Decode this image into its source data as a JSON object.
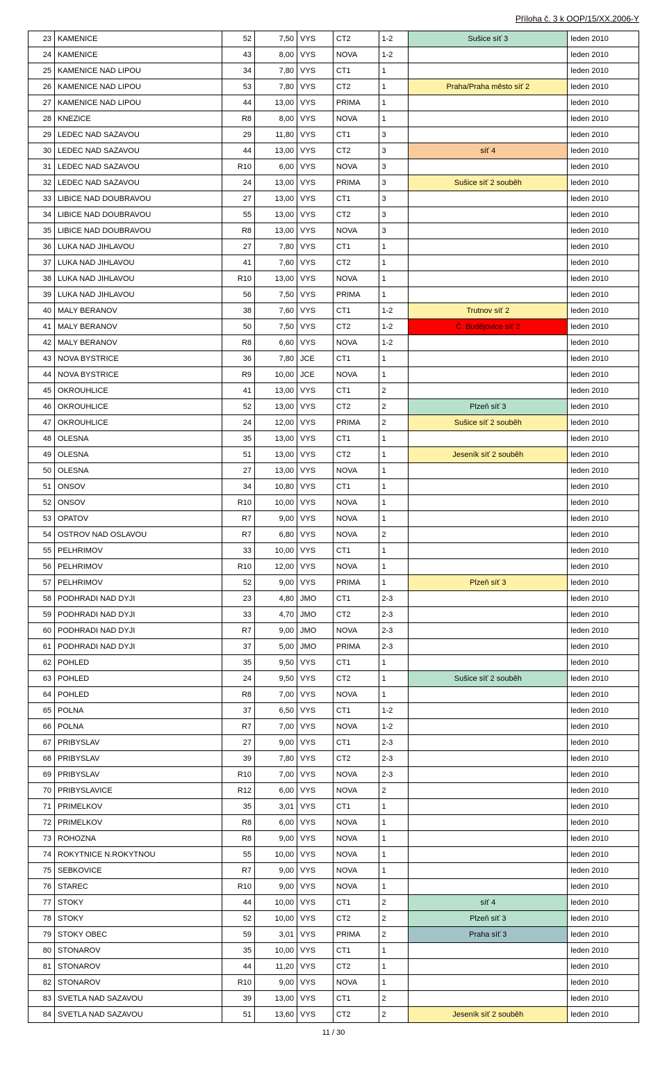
{
  "header": "Příloha č. 3 k OOP/15/XX.2006-Y",
  "footer": "11 / 30",
  "note_colors": {
    "green": "#b7e1cd",
    "yellow": "#fff2a8",
    "orange": "#f9cb9c",
    "red": "#ff0000",
    "olive": "#a2c4c9"
  },
  "column_widths": [
    "24px",
    "200px",
    "32px",
    "44px",
    "36px",
    "48px",
    "28px",
    "190px",
    "80px"
  ],
  "rows": [
    {
      "n": "23",
      "name": "KAMENICE",
      "ch": "52",
      "val": "7,50",
      "reg": "VYS",
      "ct": "CT2",
      "rng": "1-2",
      "note": "Sušice síť 3",
      "note_bg": "#b7e1cd",
      "date": "leden 2010"
    },
    {
      "n": "24",
      "name": "KAMENICE",
      "ch": "43",
      "val": "8,00",
      "reg": "VYS",
      "ct": "NOVA",
      "rng": "1-2",
      "note": "",
      "note_bg": "",
      "date": "leden 2010"
    },
    {
      "n": "25",
      "name": "KAMENICE NAD LIPOU",
      "ch": "34",
      "val": "7,80",
      "reg": "VYS",
      "ct": "CT1",
      "rng": "1",
      "note": "",
      "note_bg": "",
      "date": "leden 2010"
    },
    {
      "n": "26",
      "name": "KAMENICE NAD LIPOU",
      "ch": "53",
      "val": "7,80",
      "reg": "VYS",
      "ct": "CT2",
      "rng": "1",
      "note": "Praha/Praha město síť 2",
      "note_bg": "#fff2a8",
      "date": "leden 2010"
    },
    {
      "n": "27",
      "name": "KAMENICE NAD LIPOU",
      "ch": "44",
      "val": "13,00",
      "reg": "VYS",
      "ct": "PRIMA",
      "rng": "1",
      "note": "",
      "note_bg": "",
      "date": "leden 2010"
    },
    {
      "n": "28",
      "name": "KNEZICE",
      "ch": "R8",
      "val": "8,00",
      "reg": "VYS",
      "ct": "NOVA",
      "rng": "1",
      "note": "",
      "note_bg": "",
      "date": "leden 2010"
    },
    {
      "n": "29",
      "name": "LEDEC NAD SAZAVOU",
      "ch": "29",
      "val": "11,80",
      "reg": "VYS",
      "ct": "CT1",
      "rng": "3",
      "note": "",
      "note_bg": "",
      "date": "leden 2010"
    },
    {
      "n": "30",
      "name": "LEDEC NAD SAZAVOU",
      "ch": "44",
      "val": "13,00",
      "reg": "VYS",
      "ct": "CT2",
      "rng": "3",
      "note": "síť 4",
      "note_bg": "#f9cb9c",
      "date": "leden 2010"
    },
    {
      "n": "31",
      "name": "LEDEC NAD SAZAVOU",
      "ch": "R10",
      "val": "6,00",
      "reg": "VYS",
      "ct": "NOVA",
      "rng": "3",
      "note": "",
      "note_bg": "",
      "date": "leden 2010"
    },
    {
      "n": "32",
      "name": "LEDEC NAD SAZAVOU",
      "ch": "24",
      "val": "13,00",
      "reg": "VYS",
      "ct": "PRIMA",
      "rng": "3",
      "note": "Sušice síť 2 souběh",
      "note_bg": "#fff2a8",
      "date": "leden 2010"
    },
    {
      "n": "33",
      "name": "LIBICE NAD DOUBRAVOU",
      "ch": "27",
      "val": "13,00",
      "reg": "VYS",
      "ct": "CT1",
      "rng": "3",
      "note": "",
      "note_bg": "",
      "date": "leden 2010"
    },
    {
      "n": "34",
      "name": "LIBICE NAD DOUBRAVOU",
      "ch": "55",
      "val": "13,00",
      "reg": "VYS",
      "ct": "CT2",
      "rng": "3",
      "note": "",
      "note_bg": "",
      "date": "leden 2010"
    },
    {
      "n": "35",
      "name": "LIBICE NAD DOUBRAVOU",
      "ch": "R8",
      "val": "13,00",
      "reg": "VYS",
      "ct": "NOVA",
      "rng": "3",
      "note": "",
      "note_bg": "",
      "date": "leden 2010"
    },
    {
      "n": "36",
      "name": "LUKA NAD JIHLAVOU",
      "ch": "27",
      "val": "7,80",
      "reg": "VYS",
      "ct": "CT1",
      "rng": "1",
      "note": "",
      "note_bg": "",
      "date": "leden 2010"
    },
    {
      "n": "37",
      "name": "LUKA NAD JIHLAVOU",
      "ch": "41",
      "val": "7,60",
      "reg": "VYS",
      "ct": "CT2",
      "rng": "1",
      "note": "",
      "note_bg": "",
      "date": "leden 2010"
    },
    {
      "n": "38",
      "name": "LUKA NAD JIHLAVOU",
      "ch": "R10",
      "val": "13,00",
      "reg": "VYS",
      "ct": "NOVA",
      "rng": "1",
      "note": "",
      "note_bg": "",
      "date": "leden 2010"
    },
    {
      "n": "39",
      "name": "LUKA NAD JIHLAVOU",
      "ch": "56",
      "val": "7,50",
      "reg": "VYS",
      "ct": "PRIMA",
      "rng": "1",
      "note": "",
      "note_bg": "",
      "date": "leden 2010"
    },
    {
      "n": "40",
      "name": "MALY BERANOV",
      "ch": "38",
      "val": "7,60",
      "reg": "VYS",
      "ct": "CT1",
      "rng": "1-2",
      "note": "Trutnov síť 2",
      "note_bg": "#fff2a8",
      "date": "leden 2010"
    },
    {
      "n": "41",
      "name": "MALY BERANOV",
      "ch": "50",
      "val": "7,50",
      "reg": "VYS",
      "ct": "CT2",
      "rng": "1-2",
      "note": "Č. Budějovice síť 2",
      "note_bg": "#ff0000",
      "date": "leden 2010"
    },
    {
      "n": "42",
      "name": "MALY BERANOV",
      "ch": "R8",
      "val": "6,60",
      "reg": "VYS",
      "ct": "NOVA",
      "rng": "1-2",
      "note": "",
      "note_bg": "",
      "date": "leden 2010"
    },
    {
      "n": "43",
      "name": "NOVA BYSTRICE",
      "ch": "36",
      "val": "7,80",
      "reg": "JCE",
      "ct": "CT1",
      "rng": "1",
      "note": "",
      "note_bg": "",
      "date": "leden 2010"
    },
    {
      "n": "44",
      "name": "NOVA BYSTRICE",
      "ch": "R9",
      "val": "10,00",
      "reg": "JCE",
      "ct": "NOVA",
      "rng": "1",
      "note": "",
      "note_bg": "",
      "date": "leden 2010"
    },
    {
      "n": "45",
      "name": "OKROUHLICE",
      "ch": "41",
      "val": "13,00",
      "reg": "VYS",
      "ct": "CT1",
      "rng": "2",
      "note": "",
      "note_bg": "",
      "date": "leden 2010"
    },
    {
      "n": "46",
      "name": "OKROUHLICE",
      "ch": "52",
      "val": "13,00",
      "reg": "VYS",
      "ct": "CT2",
      "rng": "2",
      "note": "Plzeň síť 3",
      "note_bg": "#b7e1cd",
      "date": "leden 2010"
    },
    {
      "n": "47",
      "name": "OKROUHLICE",
      "ch": "24",
      "val": "12,00",
      "reg": "VYS",
      "ct": "PRIMA",
      "rng": "2",
      "note": "Sušice síť 2 souběh",
      "note_bg": "#fff2a8",
      "date": "leden 2010"
    },
    {
      "n": "48",
      "name": "OLESNA",
      "ch": "35",
      "val": "13,00",
      "reg": "VYS",
      "ct": "CT1",
      "rng": "1",
      "note": "",
      "note_bg": "",
      "date": "leden 2010"
    },
    {
      "n": "49",
      "name": "OLESNA",
      "ch": "51",
      "val": "13,00",
      "reg": "VYS",
      "ct": "CT2",
      "rng": "1",
      "note": "Jeseník síť 2 souběh",
      "note_bg": "#fff2a8",
      "date": "leden 2010"
    },
    {
      "n": "50",
      "name": "OLESNA",
      "ch": "27",
      "val": "13,00",
      "reg": "VYS",
      "ct": "NOVA",
      "rng": "1",
      "note": "",
      "note_bg": "",
      "date": "leden 2010"
    },
    {
      "n": "51",
      "name": "ONSOV",
      "ch": "34",
      "val": "10,80",
      "reg": "VYS",
      "ct": "CT1",
      "rng": "1",
      "note": "",
      "note_bg": "",
      "date": "leden 2010"
    },
    {
      "n": "52",
      "name": "ONSOV",
      "ch": "R10",
      "val": "10,00",
      "reg": "VYS",
      "ct": "NOVA",
      "rng": "1",
      "note": "",
      "note_bg": "",
      "date": "leden 2010"
    },
    {
      "n": "53",
      "name": "OPATOV",
      "ch": "R7",
      "val": "9,00",
      "reg": "VYS",
      "ct": "NOVA",
      "rng": "1",
      "note": "",
      "note_bg": "",
      "date": "leden 2010"
    },
    {
      "n": "54",
      "name": "OSTROV NAD OSLAVOU",
      "ch": "R7",
      "val": "6,80",
      "reg": "VYS",
      "ct": "NOVA",
      "rng": "2",
      "note": "",
      "note_bg": "",
      "date": "leden 2010"
    },
    {
      "n": "55",
      "name": "PELHRIMOV",
      "ch": "33",
      "val": "10,00",
      "reg": "VYS",
      "ct": "CT1",
      "rng": "1",
      "note": "",
      "note_bg": "",
      "date": "leden 2010"
    },
    {
      "n": "56",
      "name": "PELHRIMOV",
      "ch": "R10",
      "val": "12,00",
      "reg": "VYS",
      "ct": "NOVA",
      "rng": "1",
      "note": "",
      "note_bg": "",
      "date": "leden 2010"
    },
    {
      "n": "57",
      "name": "PELHRIMOV",
      "ch": "52",
      "val": "9,00",
      "reg": "VYS",
      "ct": "PRIMA",
      "rng": "1",
      "note": "Plzeň síť 3",
      "note_bg": "#fff2a8",
      "date": "leden 2010"
    },
    {
      "n": "58",
      "name": "PODHRADI NAD DYJI",
      "ch": "23",
      "val": "4,80",
      "reg": "JMO",
      "ct": "CT1",
      "rng": "2-3",
      "note": "",
      "note_bg": "",
      "date": "leden 2010"
    },
    {
      "n": "59",
      "name": "PODHRADI NAD DYJI",
      "ch": "33",
      "val": "4,70",
      "reg": "JMO",
      "ct": "CT2",
      "rng": "2-3",
      "note": "",
      "note_bg": "",
      "date": "leden 2010"
    },
    {
      "n": "60",
      "name": "PODHRADI NAD DYJI",
      "ch": "R7",
      "val": "9,00",
      "reg": "JMO",
      "ct": "NOVA",
      "rng": "2-3",
      "note": "",
      "note_bg": "",
      "date": "leden 2010"
    },
    {
      "n": "61",
      "name": "PODHRADI NAD DYJI",
      "ch": "37",
      "val": "5,00",
      "reg": "JMO",
      "ct": "PRIMA",
      "rng": "2-3",
      "note": "",
      "note_bg": "",
      "date": "leden 2010"
    },
    {
      "n": "62",
      "name": "POHLED",
      "ch": "35",
      "val": "9,50",
      "reg": "VYS",
      "ct": "CT1",
      "rng": "1",
      "note": "",
      "note_bg": "",
      "date": "leden 2010"
    },
    {
      "n": "63",
      "name": "POHLED",
      "ch": "24",
      "val": "9,50",
      "reg": "VYS",
      "ct": "CT2",
      "rng": "1",
      "note": "Sušice síť 2 souběh",
      "note_bg": "#b7e1cd",
      "date": "leden 2010"
    },
    {
      "n": "64",
      "name": "POHLED",
      "ch": "R8",
      "val": "7,00",
      "reg": "VYS",
      "ct": "NOVA",
      "rng": "1",
      "note": "",
      "note_bg": "",
      "date": "leden 2010"
    },
    {
      "n": "65",
      "name": "POLNA",
      "ch": "37",
      "val": "6,50",
      "reg": "VYS",
      "ct": "CT1",
      "rng": "1-2",
      "note": "",
      "note_bg": "",
      "date": "leden 2010"
    },
    {
      "n": "66",
      "name": "POLNA",
      "ch": "R7",
      "val": "7,00",
      "reg": "VYS",
      "ct": "NOVA",
      "rng": "1-2",
      "note": "",
      "note_bg": "",
      "date": "leden 2010"
    },
    {
      "n": "67",
      "name": "PRIBYSLAV",
      "ch": "27",
      "val": "9,00",
      "reg": "VYS",
      "ct": "CT1",
      "rng": "2-3",
      "note": "",
      "note_bg": "",
      "date": "leden 2010"
    },
    {
      "n": "68",
      "name": "PRIBYSLAV",
      "ch": "39",
      "val": "7,80",
      "reg": "VYS",
      "ct": "CT2",
      "rng": "2-3",
      "note": "",
      "note_bg": "",
      "date": "leden 2010"
    },
    {
      "n": "69",
      "name": "PRIBYSLAV",
      "ch": "R10",
      "val": "7,00",
      "reg": "VYS",
      "ct": "NOVA",
      "rng": "2-3",
      "note": "",
      "note_bg": "",
      "date": "leden 2010"
    },
    {
      "n": "70",
      "name": "PRIBYSLAVICE",
      "ch": "R12",
      "val": "6,00",
      "reg": "VYS",
      "ct": "NOVA",
      "rng": "2",
      "note": "",
      "note_bg": "",
      "date": "leden 2010"
    },
    {
      "n": "71",
      "name": "PRIMELKOV",
      "ch": "35",
      "val": "3,01",
      "reg": "VYS",
      "ct": "CT1",
      "rng": "1",
      "note": "",
      "note_bg": "",
      "date": "leden 2010"
    },
    {
      "n": "72",
      "name": "PRIMELKOV",
      "ch": "R8",
      "val": "6,00",
      "reg": "VYS",
      "ct": "NOVA",
      "rng": "1",
      "note": "",
      "note_bg": "",
      "date": "leden 2010"
    },
    {
      "n": "73",
      "name": "ROHOZNA",
      "ch": "R8",
      "val": "9,00",
      "reg": "VYS",
      "ct": "NOVA",
      "rng": "1",
      "note": "",
      "note_bg": "",
      "date": "leden 2010"
    },
    {
      "n": "74",
      "name": "ROKYTNICE N.ROKYTNOU",
      "ch": "55",
      "val": "10,00",
      "reg": "VYS",
      "ct": "NOVA",
      "rng": "1",
      "note": "",
      "note_bg": "",
      "date": "leden 2010"
    },
    {
      "n": "75",
      "name": "SEBKOVICE",
      "ch": "R7",
      "val": "9,00",
      "reg": "VYS",
      "ct": "NOVA",
      "rng": "1",
      "note": "",
      "note_bg": "",
      "date": "leden 2010"
    },
    {
      "n": "76",
      "name": "STAREC",
      "ch": "R10",
      "val": "9,00",
      "reg": "VYS",
      "ct": "NOVA",
      "rng": "1",
      "note": "",
      "note_bg": "",
      "date": "leden 2010"
    },
    {
      "n": "77",
      "name": "STOKY",
      "ch": "44",
      "val": "10,00",
      "reg": "VYS",
      "ct": "CT1",
      "rng": "2",
      "note": "síť 4",
      "note_bg": "#b7e1cd",
      "date": "leden 2010"
    },
    {
      "n": "78",
      "name": "STOKY",
      "ch": "52",
      "val": "10,00",
      "reg": "VYS",
      "ct": "CT2",
      "rng": "2",
      "note": "Plzeň síť 3",
      "note_bg": "#b7e1cd",
      "date": "leden 2010"
    },
    {
      "n": "79",
      "name": "STOKY OBEC",
      "ch": "59",
      "val": "3,01",
      "reg": "VYS",
      "ct": "PRIMA",
      "rng": "2",
      "note": "Praha síť 3",
      "note_bg": "#a2c4c9",
      "date": "leden 2010"
    },
    {
      "n": "80",
      "name": "STONAROV",
      "ch": "35",
      "val": "10,00",
      "reg": "VYS",
      "ct": "CT1",
      "rng": "1",
      "note": "",
      "note_bg": "",
      "date": "leden 2010"
    },
    {
      "n": "81",
      "name": "STONAROV",
      "ch": "44",
      "val": "11,20",
      "reg": "VYS",
      "ct": "CT2",
      "rng": "1",
      "note": "",
      "note_bg": "",
      "date": "leden 2010"
    },
    {
      "n": "82",
      "name": "STONAROV",
      "ch": "R10",
      "val": "9,00",
      "reg": "VYS",
      "ct": "NOVA",
      "rng": "1",
      "note": "",
      "note_bg": "",
      "date": "leden 2010"
    },
    {
      "n": "83",
      "name": "SVETLA NAD SAZAVOU",
      "ch": "39",
      "val": "13,00",
      "reg": "VYS",
      "ct": "CT1",
      "rng": "2",
      "note": "",
      "note_bg": "",
      "date": "leden 2010"
    },
    {
      "n": "84",
      "name": "SVETLA NAD SAZAVOU",
      "ch": "51",
      "val": "13,60",
      "reg": "VYS",
      "ct": "CT2",
      "rng": "2",
      "note": "Jeseník síť 2 souběh",
      "note_bg": "#fff2a8",
      "date": "leden 2010"
    }
  ]
}
